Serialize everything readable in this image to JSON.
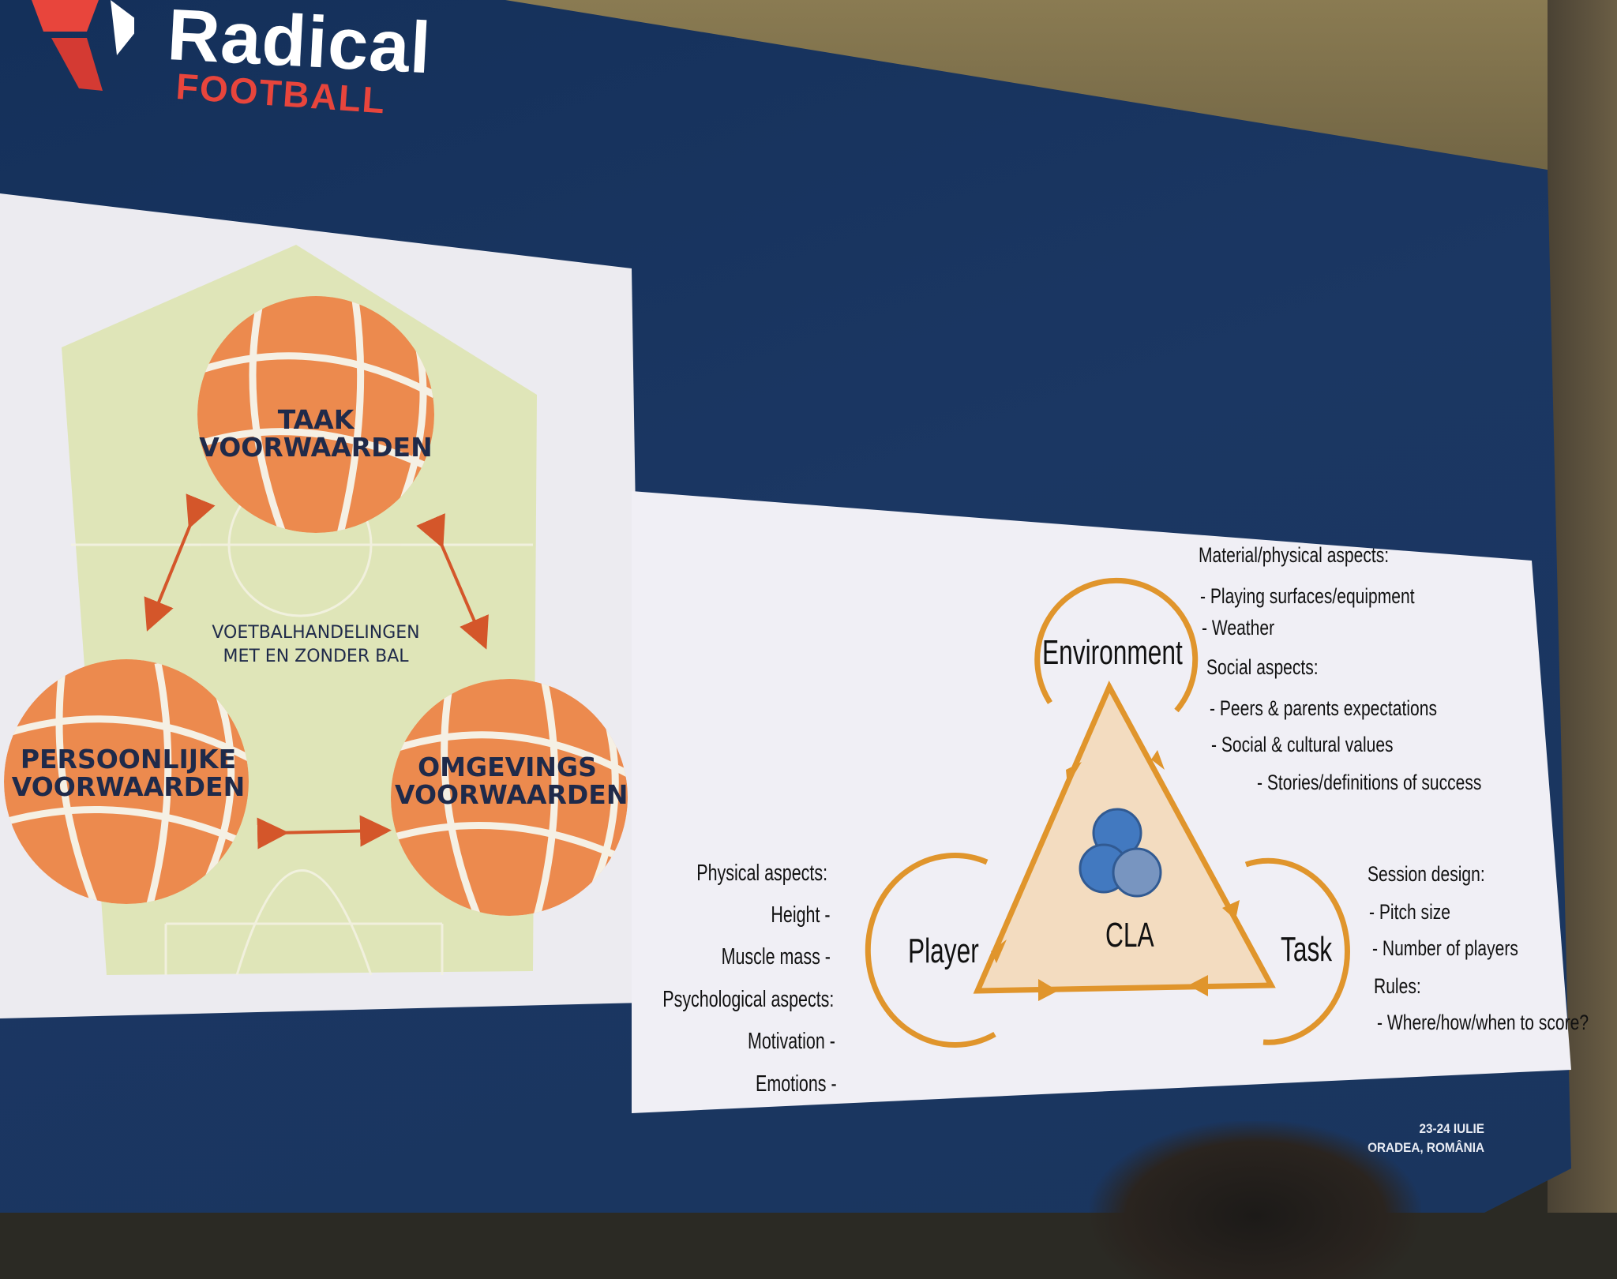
{
  "logo": {
    "word1": "Radical",
    "word2": "FOOTBALL",
    "icon": "radical-football-logo-icon"
  },
  "left_diagram": {
    "balls": [
      {
        "label": "TAAK\nVOORWAARDEN"
      },
      {
        "label": "PERSOONLIJKE\nVOORWAARDEN"
      },
      {
        "label": "OMGEVINGS\nVOORWAARDEN"
      }
    ],
    "center_text": [
      "VOETBALHANDELINGEN",
      "MET EN ZONDER BAL"
    ]
  },
  "cla_diagram": {
    "center": "CLA",
    "nodes": {
      "environment": "Environment",
      "player": "Player",
      "task": "Task"
    },
    "environment_list": [
      "Material/physical aspects:",
      "- Playing surfaces/equipment",
      "- Weather",
      "Social aspects:",
      "- Peers & parents expectations",
      "- Social & cultural values",
      "- Stories/definitions of success"
    ],
    "player_list": [
      "Physical aspects:",
      "Height -",
      "Muscle mass -",
      "Psychological aspects:",
      "Motivation -",
      "Emotions -"
    ],
    "task_list": [
      "Session design:",
      "- Pitch size",
      "- Number of players",
      "Rules:",
      "- Where/how/when to score?"
    ]
  },
  "event": {
    "dates": "23-24 IULIE",
    "place": "ORADEA, ROMÂNIA"
  },
  "colors": {
    "screen_blue": "#1b3763",
    "ball_orange": "#ec8a4e",
    "arrow_orange": "#e0952c",
    "pitch_green": "#dfe5b8",
    "logo_red": "#e8453c"
  }
}
